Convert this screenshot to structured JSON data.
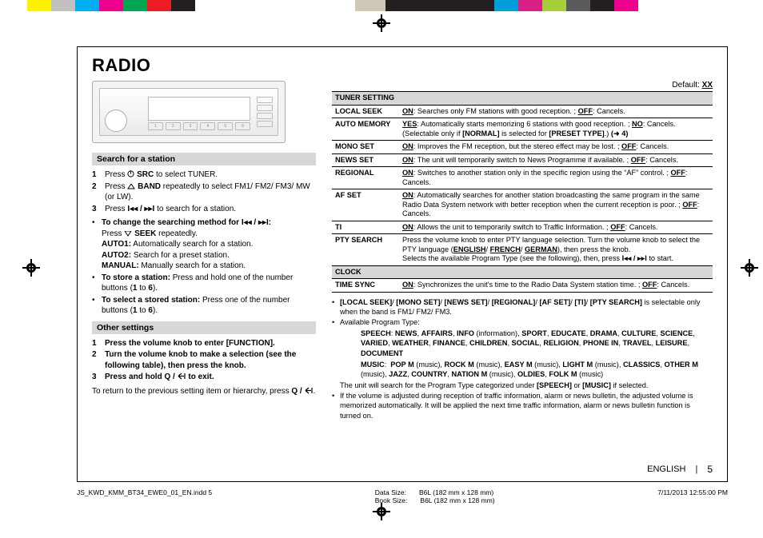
{
  "colorbar": [
    "#ffffff",
    "#fff200",
    "#c0c0c0",
    "#00adee",
    "#ec008c",
    "#00a551",
    "#ed1c24",
    "#231f20",
    "#ffffff",
    "#d0c7b8",
    "#231f20",
    "#009edb",
    "#d71f85",
    "#a6ce39",
    "#595a5c",
    "#231f20",
    "#ec008c",
    "#ffffff"
  ],
  "title": "RADIO",
  "leftcol": {
    "section1": {
      "header": "Search for a station",
      "items": [
        {
          "n": "1",
          "t": "Press <svg class='icon' width='9' height='9'><circle cx='4.5' cy='4.5' r='3.6' fill='none' stroke='#000' stroke-width='1'/><line x1='4.5' y1='1' x2='4.5' y2='4.5' stroke='#000' stroke-width='1'/></svg> <b>SRC</b> to select TUNER."
        },
        {
          "n": "2",
          "t": "Press <svg class='icon' width='10' height='7'><path d='M5 0 L9 6 L1 6 Z' fill='none' stroke='#000' stroke-width='1'/></svg> <b>BAND</b> repeatedly to select FM1/ FM2/ FM3/ MW (or LW)."
        },
        {
          "n": "3",
          "t": "Press <b>I◂◂ / ▸▸I</b> to search for a station."
        }
      ],
      "bullets": [
        {
          "t": "<b>To change the searching method for I◂◂ / ▸▸I:</b><br>Press <svg class='icon' width='10' height='7'><path d='M5 6 L9 0 L1 0 Z' fill='none' stroke='#000' stroke-width='1'/></svg> <b>SEEK</b> repeatedly.<br><b>AUTO1:</b> Automatically search for a station.<br><b>AUTO2:</b> Search for a preset station.<br><b>MANUAL:</b> Manually search for a station."
        },
        {
          "t": "<b>To store a station:</b> Press and hold one of the number buttons (<b>1</b> to <b>6</b>)."
        },
        {
          "t": "<b>To select a stored station:</b> Press one of the number buttons (<b>1</b> to <b>6</b>)."
        }
      ]
    },
    "section2": {
      "header": "Other settings",
      "items": [
        {
          "n": "1",
          "t": "Press the volume knob to enter [FUNCTION]."
        },
        {
          "n": "2",
          "t": "Turn the volume knob to make a selection (see the following table), then press the knob."
        },
        {
          "n": "3",
          "t": "Press and hold <b>Q /</b> <svg class='icon' width='11' height='9'><path d='M1 4.5 L5 1 M1 4.5 L5 8 M1 4.5 L8 4.5 M9 1 L9 8' stroke='#000' stroke-width='1.2' fill='none'/></svg> <b>to exit.</b>"
        }
      ],
      "footnote": "To return to the previous setting item or hierarchy, press <b>Q /</b> <svg class='icon' width='11' height='9'><path d='M1 4.5 L5 1 M1 4.5 L5 8 M1 4.5 L8 4.5 M9 1 L9 8' stroke='#000' stroke-width='1.2' fill='none'/></svg>."
    }
  },
  "rightcol": {
    "default": "Default: <b><u>XX</u></b>",
    "table": [
      {
        "type": "group",
        "label": "TUNER SETTING"
      },
      {
        "type": "row",
        "label": "LOCAL SEEK",
        "desc": "<b><u>ON</u></b>: Searches only FM stations with good reception. ; <b><u>OFF</u></b>: Cancels."
      },
      {
        "type": "row",
        "label": "AUTO MEMORY",
        "desc": "<b><u>YES</u></b>: Automatically starts memorizing 6 stations with good reception. ; <b><u>NO</u></b>: Cancels. (Selectable only if <b>[NORMAL]</b> is selected for <b>[PRESET TYPE]</b>.) <b>(➜ 4)</b>"
      },
      {
        "type": "row",
        "label": "MONO SET",
        "desc": "<b><u>ON</u></b>: Improves the FM reception, but the stereo effect may be lost. ; <b><u>OFF</u></b>: Cancels."
      },
      {
        "type": "row",
        "label": "NEWS SET",
        "desc": "<b><u>ON</u></b>: The unit will temporarily switch to News Programme if available. ; <b><u>OFF</u></b>: Cancels."
      },
      {
        "type": "row",
        "label": "REGIONAL",
        "desc": "<b><u>ON</u></b>: Switches to another station only in the specific region using the &ldquo;AF&rdquo; control. ; <b><u>OFF</u></b>: Cancels."
      },
      {
        "type": "row",
        "label": "AF SET",
        "desc": "<b><u>ON</u></b>: Automatically searches for another station broadcasting the same program in the same Radio Data System network with better reception when the current reception is poor. ; <b><u>OFF</u></b>: Cancels."
      },
      {
        "type": "row",
        "label": "TI",
        "desc": "<b><u>ON</u></b>: Allows the unit to temporarily switch to Traffic Information. ; <b><u>OFF</u></b>: Cancels."
      },
      {
        "type": "row",
        "label": "PTY SEARCH",
        "desc": "Press the volume knob to enter PTY language selection. Turn the volume knob to select the PTY language (<b><u>ENGLISH</u></b>/ <b><u>FRENCH</u></b>/ <b><u>GERMAN</u></b>), then press the knob.<br>Selects the available Program Type (see the following), then, press <b>I◂◂ / ▸▸I</b> to start."
      },
      {
        "type": "group",
        "label": "CLOCK"
      },
      {
        "type": "row",
        "label": "TIME SYNC",
        "desc": "<b><u>ON</u></b>: Synchronizes the unit's time to the Radio Data System station time. ; <b><u>OFF</u></b>: Cancels."
      }
    ],
    "notes": [
      {
        "t": "<b>[LOCAL SEEK]</b>/ <b>[MONO SET]</b>/ <b>[NEWS SET]</b>/ <b>[REGIONAL]</b>/ <b>[AF SET]</b>/ <b>[TI]</b>/ <b>[PTY SEARCH]</b> is selectable only when the band is FM1/ FM2/ FM3."
      },
      {
        "t": "Available Program Type:",
        "subs": [
          "<b>SPEECH</b>: <b>NEWS</b>, <b>AFFAIRS</b>, <b>INFO</b> (information), <b>SPORT</b>, <b>EDUCATE</b>, <b>DRAMA</b>, <b>CULTURE</b>, <b>SCIENCE</b>, <b>VARIED</b>, <b>WEATHER</b>, <b>FINANCE</b>, <b>CHILDREN</b>, <b>SOCIAL</b>, <b>RELIGION</b>, <b>PHONE IN</b>, <b>TRAVEL</b>, <b>LEISURE</b>, <b>DOCUMENT</b>",
          "<b>MUSIC</b>: &nbsp;<b>POP M</b> (music), <b>ROCK M</b> (music), <b>EASY M</b> (music), <b>LIGHT M</b> (music), <b>CLASSICS</b>, <b>OTHER M</b> (music), <b>JAZZ</b>, <b>COUNTRY</b>, <b>NATION M</b> (music), <b>OLDIES</b>, <b>FOLK M</b> (music)"
        ],
        "after": "The unit will search for the Program Type categorized under <b>[SPEECH]</b> or <b>[MUSIC]</b> if selected."
      },
      {
        "t": "If the volume is adjusted during reception of traffic information, alarm or news bulletin, the adjusted volume is memorized automatically. It will be applied the next time traffic information, alarm or news bulletin function is turned on."
      }
    ]
  },
  "footer": {
    "lang": "ENGLISH",
    "sep": "|",
    "page": "5"
  },
  "printline": {
    "left": "JS_KWD_KMM_BT34_EWE0_01_EN.indd   5",
    "midA": {
      "k": "Data Size:",
      "v": "B6L (182 mm x 128 mm)"
    },
    "midB": {
      "k": "Book Size:",
      "v": "B6L (182 mm x 128 mm)"
    },
    "right": "7/11/2013   12:55:00 PM"
  }
}
